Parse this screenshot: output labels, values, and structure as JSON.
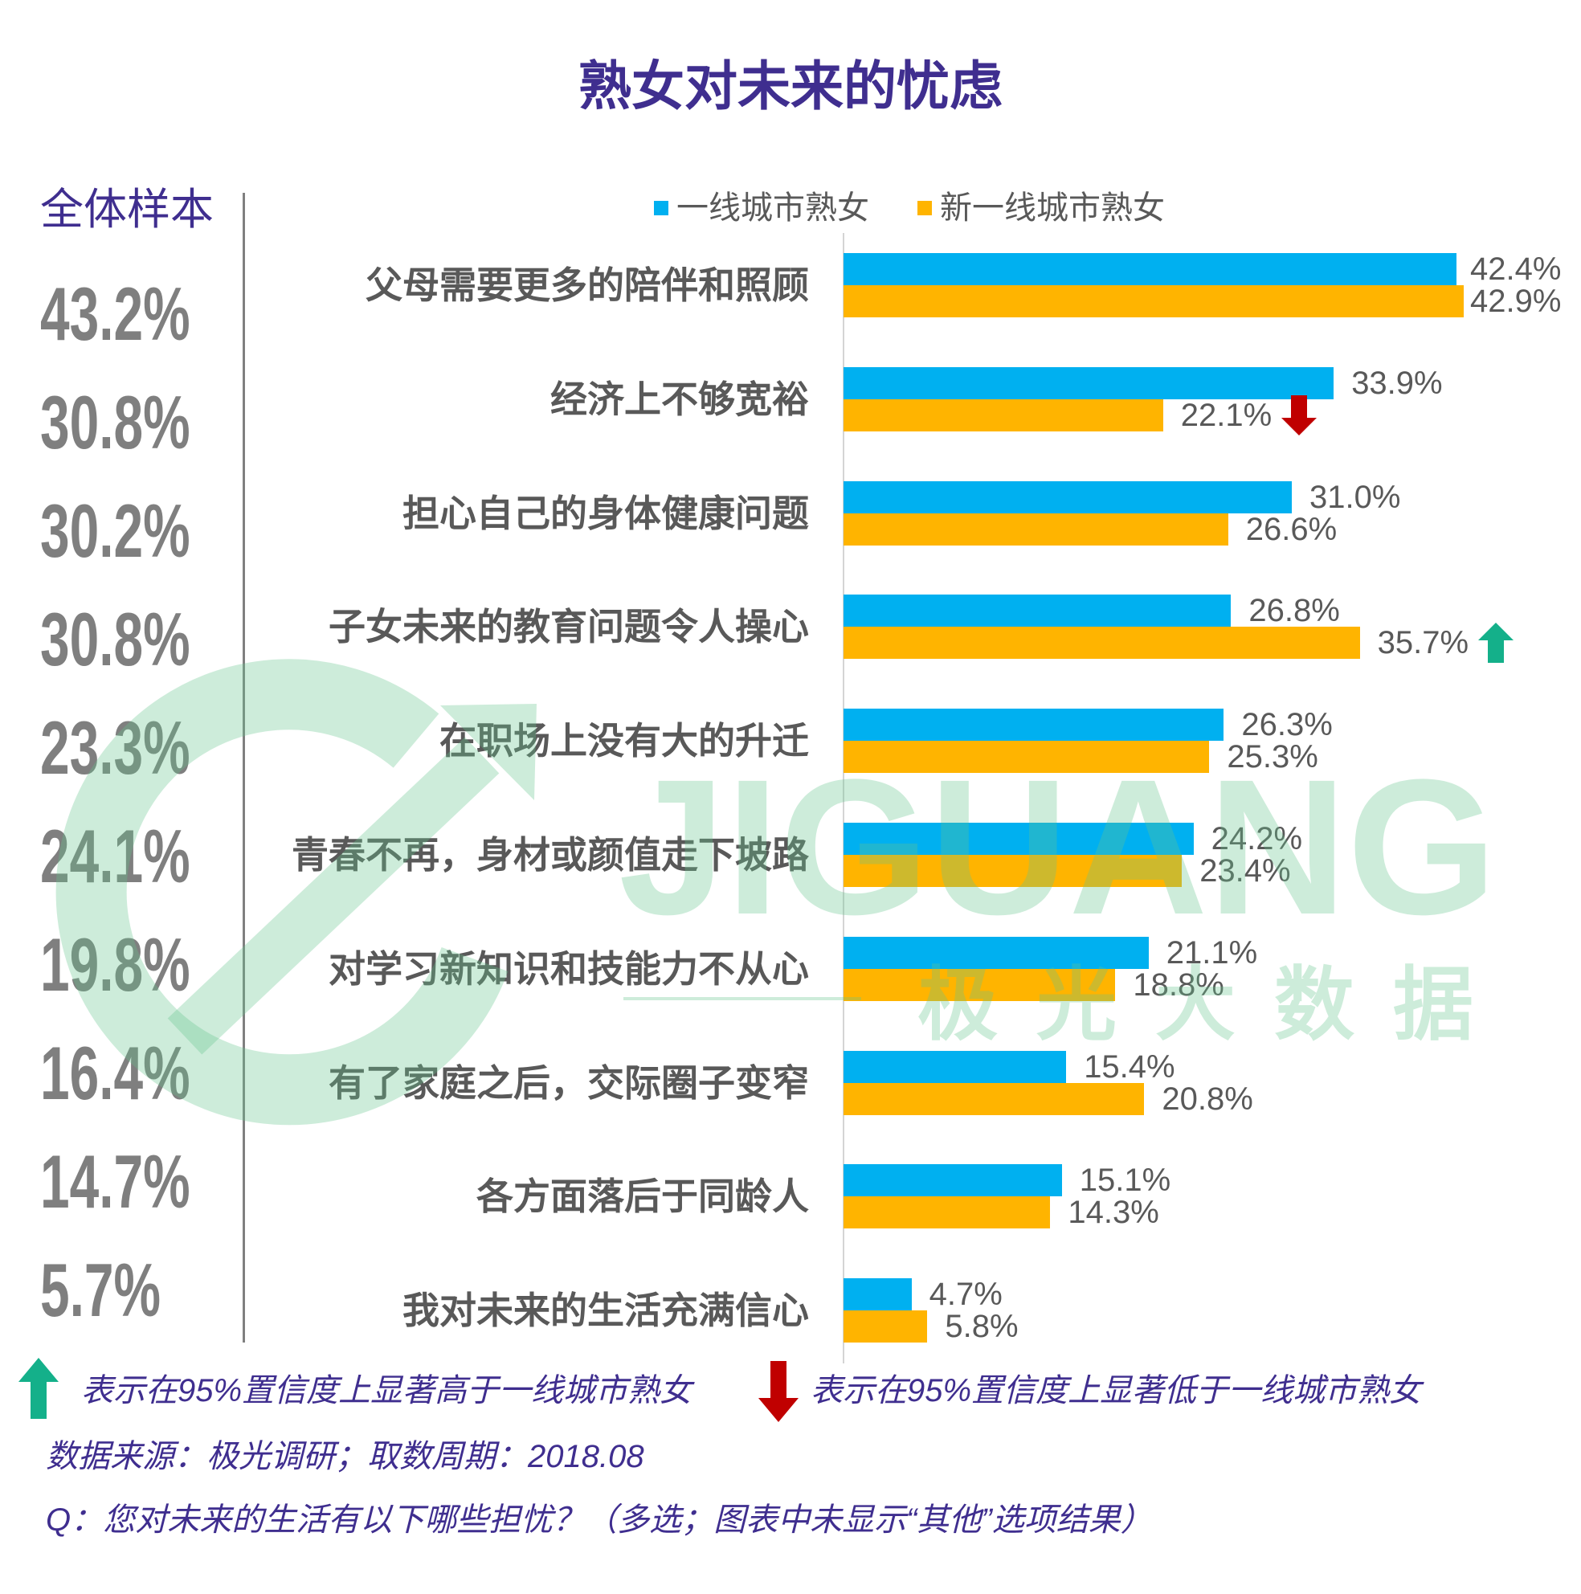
{
  "chart_data": {
    "type": "bar",
    "orientation": "horizontal",
    "title": "熟女对未来的忧虑",
    "categories": [
      "父母需要更多的陪伴和照顾",
      "经济上不够宽裕",
      "担心自己的身体健康问题",
      "子女未来的教育问题令人操心",
      "在职场上没有大的升迁",
      "青春不再，身材或颜值走下坡路",
      "对学习新知识和技能力不从心",
      "有了家庭之后，交际圈子变窄",
      "各方面落后于同龄人",
      "我对未来的生活充满信心"
    ],
    "series": [
      {
        "name": "一线城市熟女",
        "color": "#00b0f0",
        "values": [
          42.4,
          33.9,
          31.0,
          26.8,
          26.3,
          24.2,
          21.1,
          15.4,
          15.1,
          4.7
        ]
      },
      {
        "name": "新一线城市熟女",
        "color": "#ffb400",
        "values": [
          42.9,
          22.1,
          26.6,
          35.7,
          25.3,
          23.4,
          18.8,
          20.8,
          14.3,
          5.8
        ],
        "significance": [
          0,
          -1,
          0,
          1,
          0,
          0,
          0,
          0,
          0,
          0
        ]
      }
    ],
    "overall": {
      "label": "全体样本",
      "values": [
        43.2,
        30.8,
        30.2,
        30.8,
        23.3,
        24.1,
        19.8,
        16.4,
        14.7,
        5.7
      ]
    },
    "value_suffix": "%"
  },
  "notes": {
    "higher": "表示在95%置信度上显著高于一线城市熟女",
    "lower": "表示在95%置信度上显著低于一线城市熟女"
  },
  "source": "数据来源：极光调研；取数周期：2018.08",
  "question": "Q：您对未来的生活有以下哪些担忧？（多选；图表中未显示“其他”选项结果）",
  "watermark": {
    "text": "JIGUANG",
    "subtext": "极光大数据"
  },
  "colors": {
    "title": "#3f2e8f",
    "up_arrow": "#14b08a",
    "down_arrow": "#c00000"
  }
}
